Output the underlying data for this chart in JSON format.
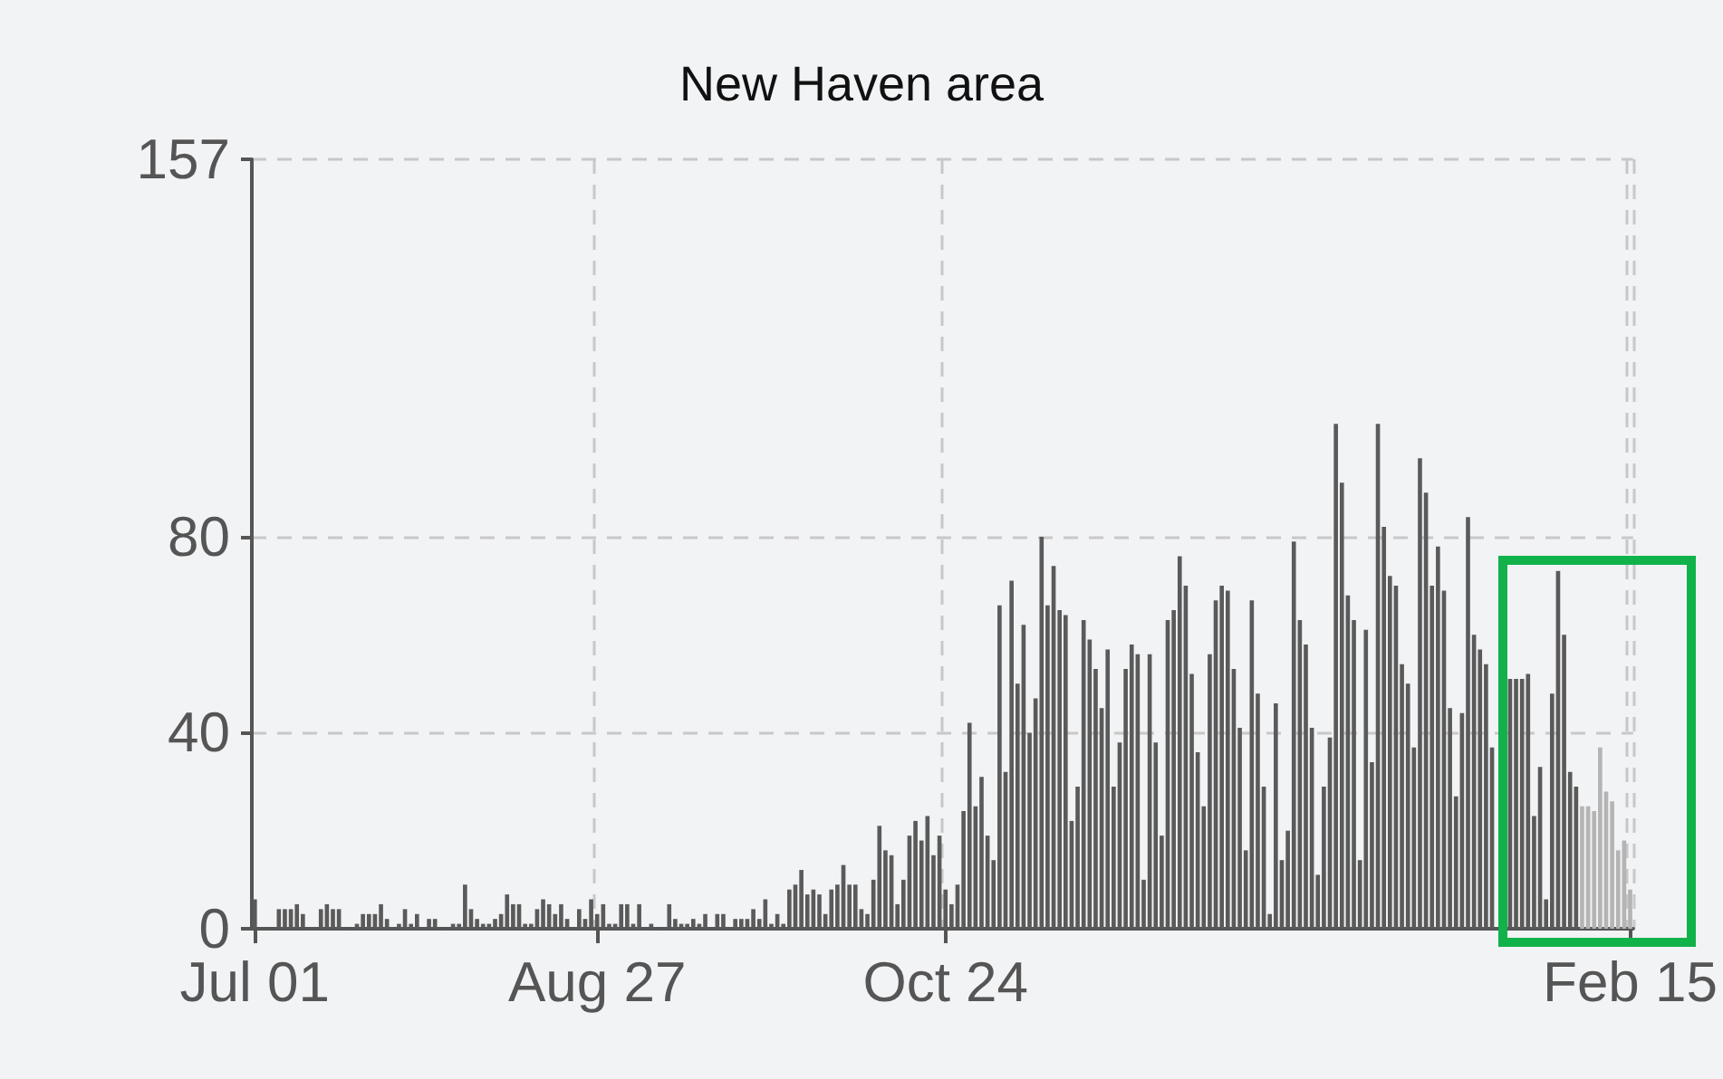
{
  "chart_data": {
    "type": "bar",
    "title": "New Haven area",
    "categories": [
      "Jul 01",
      null,
      null,
      null,
      null,
      null,
      null,
      null,
      null,
      null,
      null,
      null,
      null,
      null,
      null,
      null,
      null,
      null,
      null,
      null,
      null,
      null,
      null,
      null,
      null,
      null,
      null,
      null,
      null,
      null,
      null,
      null,
      null,
      null,
      null,
      null,
      null,
      null,
      null,
      null,
      null,
      null,
      null,
      null,
      null,
      null,
      null,
      null,
      null,
      null,
      null,
      null,
      null,
      null,
      null,
      null,
      null,
      "Aug 27",
      null,
      null,
      null,
      null,
      null,
      null,
      null,
      null,
      null,
      null,
      null,
      null,
      null,
      null,
      null,
      null,
      null,
      null,
      null,
      null,
      null,
      null,
      null,
      null,
      null,
      null,
      null,
      null,
      null,
      null,
      null,
      null,
      null,
      null,
      null,
      null,
      null,
      null,
      null,
      null,
      null,
      null,
      null,
      null,
      null,
      null,
      null,
      null,
      null,
      null,
      null,
      null,
      null,
      null,
      null,
      null,
      null,
      "Oct 24",
      null,
      null,
      null,
      null,
      null,
      null,
      null,
      null,
      null,
      null,
      null,
      null,
      null,
      null,
      null,
      null,
      null,
      null,
      null,
      null,
      null,
      null,
      null,
      null,
      null,
      null,
      null,
      null,
      null,
      null,
      null,
      null,
      null,
      null,
      null,
      null,
      null,
      null,
      null,
      null,
      null,
      null,
      null,
      null,
      null,
      null,
      null,
      null,
      null,
      null,
      null,
      null,
      null,
      null,
      null,
      null,
      null,
      null,
      null,
      null,
      null,
      null,
      null,
      null,
      null,
      null,
      null,
      null,
      null,
      null,
      null,
      null,
      null,
      null,
      null,
      null,
      null,
      null,
      null,
      null,
      null,
      null,
      null,
      null,
      null,
      null,
      null,
      null,
      null,
      null,
      null,
      null,
      null,
      null,
      null,
      null,
      null,
      null,
      null,
      null,
      null,
      null,
      null,
      null,
      null,
      null,
      null,
      null,
      null,
      null,
      null,
      null,
      null,
      "Feb 15"
    ],
    "colors": [
      "#5a5a5a",
      "#5a5a5a",
      "#5a5a5a",
      "#5a5a5a",
      "#5a5a5a",
      "#5a5a5a",
      "#5a5a5a",
      "#5a5a5a",
      "#5a5a5a",
      "#5a5a5a",
      "#5a5a5a",
      "#5a5a5a",
      "#5a5a5a",
      "#5a5a5a",
      "#5a5a5a",
      "#5a5a5a",
      "#5a5a5a",
      "#5a5a5a",
      "#5a5a5a",
      "#5a5a5a",
      "#5a5a5a",
      "#5a5a5a",
      "#5a5a5a",
      "#5a5a5a",
      "#5a5a5a",
      "#5a5a5a",
      "#5a5a5a",
      "#5a5a5a",
      "#5a5a5a",
      "#5a5a5a",
      "#5a5a5a",
      "#5a5a5a",
      "#5a5a5a",
      "#5a5a5a",
      "#5a5a5a",
      "#5a5a5a",
      "#5a5a5a",
      "#5a5a5a",
      "#5a5a5a",
      "#5a5a5a",
      "#5a5a5a",
      "#5a5a5a",
      "#5a5a5a",
      "#5a5a5a",
      "#5a5a5a",
      "#5a5a5a",
      "#5a5a5a",
      "#5a5a5a",
      "#5a5a5a",
      "#5a5a5a",
      "#5a5a5a",
      "#5a5a5a",
      "#5a5a5a",
      "#5a5a5a",
      "#5a5a5a",
      "#5a5a5a",
      "#5a5a5a",
      "#5a5a5a",
      "#5a5a5a",
      "#5a5a5a",
      "#5a5a5a",
      "#5a5a5a",
      "#5a5a5a",
      "#5a5a5a",
      "#5a5a5a",
      "#5a5a5a",
      "#5a5a5a",
      "#5a5a5a",
      "#5a5a5a",
      "#5a5a5a",
      "#5a5a5a",
      "#5a5a5a",
      "#5a5a5a",
      "#5a5a5a",
      "#5a5a5a",
      "#5a5a5a",
      "#5a5a5a",
      "#5a5a5a",
      "#5a5a5a",
      "#5a5a5a",
      "#5a5a5a",
      "#5a5a5a",
      "#5a5a5a",
      "#5a5a5a",
      "#5a5a5a",
      "#5a5a5a",
      "#5a5a5a",
      "#5a5a5a",
      "#5a5a5a",
      "#5a5a5a",
      "#5a5a5a",
      "#5a5a5a",
      "#5a5a5a",
      "#5a5a5a",
      "#5a5a5a",
      "#5a5a5a",
      "#5a5a5a",
      "#5a5a5a",
      "#5a5a5a",
      "#5a5a5a",
      "#5a5a5a",
      "#5a5a5a",
      "#5a5a5a",
      "#5a5a5a",
      "#5a5a5a",
      "#5a5a5a",
      "#5a5a5a",
      "#5a5a5a",
      "#5a5a5a",
      "#5a5a5a",
      "#5a5a5a",
      "#5a5a5a",
      "#5a5a5a",
      "#5a5a5a",
      "#5a5a5a",
      "#5a5a5a",
      "#5a5a5a",
      "#5a5a5a",
      "#5a5a5a",
      "#5a5a5a",
      "#5a5a5a",
      "#5a5a5a",
      "#5a5a5a",
      "#5a5a5a",
      "#5a5a5a",
      "#5a5a5a",
      "#5a5a5a",
      "#5a5a5a",
      "#5a5a5a",
      "#5a5a5a",
      "#5a5a5a",
      "#5a5a5a",
      "#5a5a5a",
      "#5a5a5a",
      "#5a5a5a",
      "#5a5a5a",
      "#5a5a5a",
      "#5a5a5a",
      "#5a5a5a",
      "#5a5a5a",
      "#5a5a5a",
      "#5a5a5a",
      "#5a5a5a",
      "#5a5a5a",
      "#5a5a5a",
      "#5a5a5a",
      "#5a5a5a",
      "#5a5a5a",
      "#5a5a5a",
      "#5a5a5a",
      "#5a5a5a",
      "#5a5a5a",
      "#5a5a5a",
      "#5a5a5a",
      "#5a5a5a",
      "#5a5a5a",
      "#5a5a5a",
      "#5a5a5a",
      "#5a5a5a",
      "#5a5a5a",
      "#5a5a5a",
      "#5a5a5a",
      "#5a5a5a",
      "#5a5a5a",
      "#5a5a5a",
      "#5a5a5a",
      "#5a5a5a",
      "#5a5a5a",
      "#5a5a5a",
      "#5a5a5a",
      "#5a5a5a",
      "#5a5a5a",
      "#5a5a5a",
      "#5a5a5a",
      "#5a5a5a",
      "#5a5a5a",
      "#5a5a5a",
      "#5a5a5a",
      "#5a5a5a",
      "#5a5a5a",
      "#5a5a5a",
      "#5a5a5a",
      "#5a5a5a",
      "#5a5a5a",
      "#5a5a5a",
      "#5a5a5a",
      "#5a5a5a",
      "#5a5a5a",
      "#5a5a5a",
      "#5a5a5a",
      "#5a5a5a",
      "#5a5a5a",
      "#5a5a5a",
      "#5a5a5a",
      "#5a5a5a",
      "#5a5a5a",
      "#5a5a5a",
      "#5a5a5a",
      "#5a5a5a",
      "#5a5a5a",
      "#5a5a5a",
      "#5a5a5a",
      "#5a5a5a",
      "#5a5a5a",
      "#5a5a5a",
      "#5a5a5a",
      "#5a5a5a",
      "#5a5a5a",
      "#5a5a5a",
      "#5a5a5a",
      "#5a5a5a",
      "#5a5a5a",
      "#5a5a5a",
      "#5a5a5a",
      "#5a5a5a",
      "#5a5a5a",
      "#5a5a5a",
      "#5a5a5a",
      "#5a5a5a",
      "#5a5a5a",
      "#5a5a5a",
      "#b4b4b4",
      "#b4b4b4",
      "#b4b4b4",
      "#b4b4b4",
      "#b4b4b4",
      "#b4b4b4",
      "#b4b4b4",
      "#b4b4b4",
      "#b4b4b4"
    ],
    "values": [
      6,
      0,
      0,
      0,
      4,
      4,
      4,
      5,
      3,
      0,
      0,
      4,
      5,
      4,
      4,
      0,
      0,
      1,
      3,
      3,
      3,
      5,
      2,
      0,
      1,
      4,
      1,
      3,
      0,
      2,
      2,
      0,
      0,
      1,
      1,
      9,
      4,
      2,
      1,
      1,
      2,
      3,
      7,
      5,
      5,
      1,
      1,
      4,
      6,
      5,
      3,
      5,
      2,
      0,
      4,
      2,
      6,
      3,
      5,
      1,
      1,
      5,
      5,
      1,
      5,
      0,
      1,
      0,
      0,
      5,
      2,
      1,
      1,
      2,
      1,
      3,
      0,
      3,
      3,
      0,
      2,
      2,
      2,
      4,
      2,
      6,
      1,
      3,
      1,
      8,
      9,
      12,
      7,
      8,
      7,
      3,
      8,
      9,
      13,
      9,
      9,
      4,
      3,
      10,
      21,
      16,
      15,
      5,
      10,
      19,
      22,
      18,
      23,
      15,
      19,
      8,
      5,
      9,
      24,
      42,
      25,
      31,
      19,
      14,
      66,
      32,
      71,
      50,
      62,
      40,
      47,
      80,
      66,
      74,
      65,
      64,
      22,
      29,
      63,
      59,
      53,
      45,
      57,
      29,
      38,
      53,
      58,
      56,
      10,
      56,
      38,
      19,
      63,
      65,
      76,
      70,
      52,
      36,
      25,
      56,
      67,
      70,
      69,
      53,
      41,
      16,
      67,
      48,
      29,
      3,
      46,
      14,
      20,
      79,
      63,
      58,
      41,
      11,
      29,
      39,
      103,
      91,
      68,
      63,
      14,
      61,
      34,
      103,
      82,
      72,
      70,
      54,
      50,
      37,
      96,
      89,
      70,
      78,
      69,
      45,
      27,
      44,
      84,
      60,
      57,
      54,
      37,
      null,
      null,
      51,
      51,
      51,
      52,
      23,
      33,
      6,
      48,
      73,
      60,
      32,
      29,
      25,
      25,
      24,
      37,
      28,
      26,
      16,
      18,
      8
    ],
    "ylim": [
      0,
      157
    ],
    "yticks": [
      0,
      40,
      80,
      157
    ],
    "grid": true
  }
}
